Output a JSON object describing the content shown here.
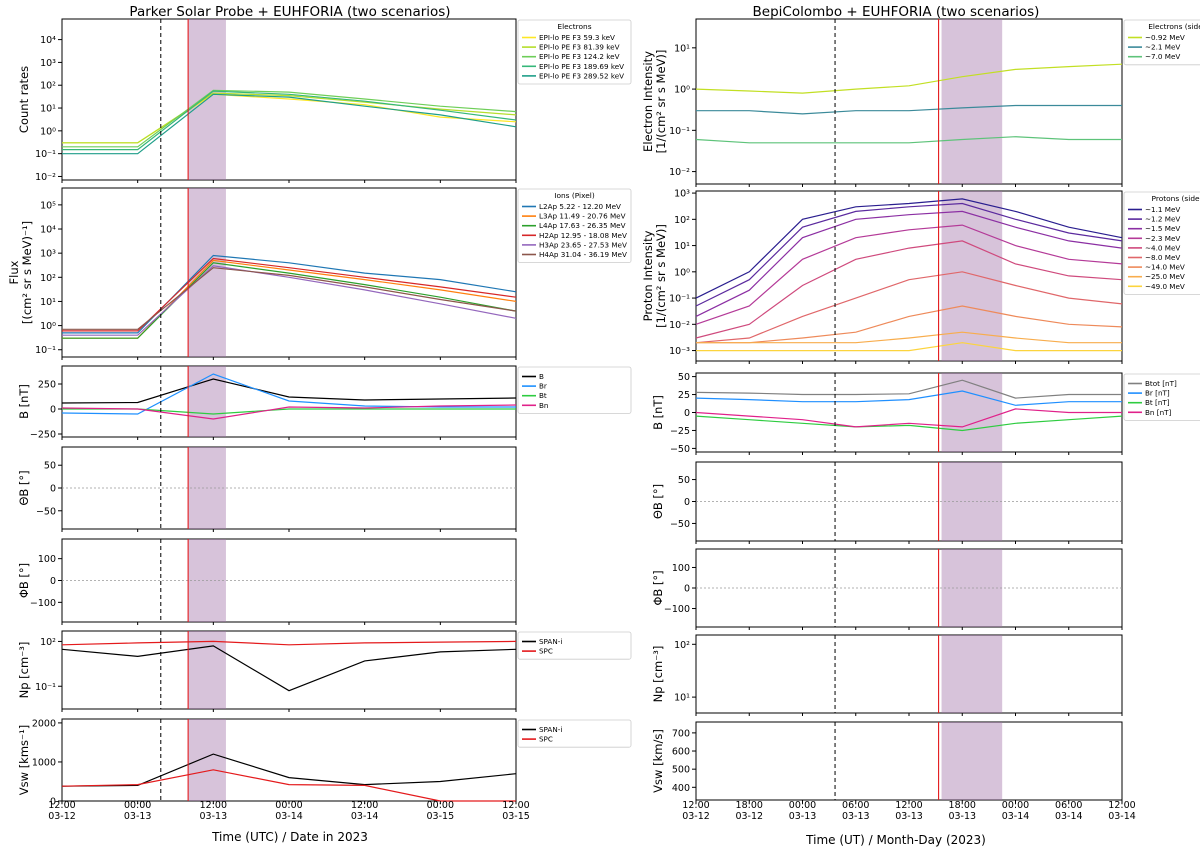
{
  "chart_data": [
    {
      "type": "line",
      "title": "Parker Solar Probe + EUHFORIA (two scenarios)",
      "xlabel": "Time (UTC) / Date in 2023",
      "x_ticks": [
        {
          "time": "12:00",
          "date": "03-12"
        },
        {
          "time": "00:00",
          "date": "03-13"
        },
        {
          "time": "12:00",
          "date": "03-13"
        },
        {
          "time": "00:00",
          "date": "03-14"
        },
        {
          "time": "12:00",
          "date": "03-14"
        },
        {
          "time": "00:00",
          "date": "03-15"
        },
        {
          "time": "12:00",
          "date": "03-15"
        }
      ],
      "xlim": [
        "2023-03-12T12:00",
        "2023-03-15T12:00"
      ],
      "markers": {
        "dashed_line": "2023-03-13T03:40",
        "red_line": "2023-03-13T08:00",
        "shaded_interval": [
          "2023-03-13T08:00",
          "2023-03-13T14:00"
        ]
      },
      "panels": [
        {
          "ylabel": "Count rates",
          "yscale": "log",
          "ylim": [
            0.007,
            80000
          ],
          "yticks": [
            "10⁻²",
            "10⁻¹",
            "10⁰",
            "10¹",
            "10²",
            "10³",
            "10⁴"
          ],
          "legend_title": "Electrons",
          "legend_position": "right",
          "series": [
            {
              "name": "EPI-lo PE F3 59.3 keV",
              "color": "#fde725",
              "values": [
                0.3,
                0.3,
                40,
                25,
                14,
                4,
                2.5
              ]
            },
            {
              "name": "EPI-lo PE F3 81.39 keV",
              "color": "#b5de2b",
              "values": [
                0.3,
                0.3,
                45,
                35,
                18,
                9,
                5
              ]
            },
            {
              "name": "EPI-lo PE F3 124.2 keV",
              "color": "#6ece58",
              "values": [
                0.2,
                0.2,
                60,
                50,
                25,
                12,
                7
              ]
            },
            {
              "name": "EPI-lo PE F3 189.69 keV",
              "color": "#35b779",
              "values": [
                0.15,
                0.15,
                55,
                40,
                20,
                8,
                3
              ]
            },
            {
              "name": "EPI-lo PE F3 289.52 keV",
              "color": "#1f9e89",
              "values": [
                0.1,
                0.1,
                40,
                30,
                12,
                5,
                1.5
              ]
            }
          ]
        },
        {
          "ylabel": "Flux",
          "ylabel2": "[(cm² sr s MeV)⁻¹]",
          "yscale": "log",
          "ylim": [
            0.05,
            500000
          ],
          "yticks": [
            "10⁻¹",
            "10⁰",
            "10¹",
            "10²",
            "10³",
            "10⁴",
            "10⁵"
          ],
          "legend_title": "Ions (Pixel)",
          "legend_position": "right",
          "series": [
            {
              "name": "L2Ap 5.22 - 12.20 MeV",
              "color": "#1f77b4",
              "values": [
                0.5,
                0.5,
                800,
                400,
                150,
                80,
                25
              ]
            },
            {
              "name": "L3Ap 11.49 - 20.76 MeV",
              "color": "#ff7f0e",
              "values": [
                0.3,
                0.3,
                500,
                200,
                80,
                30,
                10
              ]
            },
            {
              "name": "L4Ap 17.63 - 26.35 MeV",
              "color": "#2ca02c",
              "values": [
                0.3,
                0.3,
                400,
                150,
                50,
                15,
                4
              ]
            },
            {
              "name": "H2Ap 12.95 - 18.08 MeV",
              "color": "#d62728",
              "values": [
                0.6,
                0.6,
                600,
                250,
                100,
                40,
                15
              ]
            },
            {
              "name": "H3Ap 23.65 - 27.53 MeV",
              "color": "#9467bd",
              "values": [
                0.4,
                0.4,
                300,
                100,
                30,
                8,
                2
              ]
            },
            {
              "name": "H4Ap 31.04 - 36.19 MeV",
              "color": "#8c564b",
              "values": [
                0.7,
                0.7,
                250,
                120,
                40,
                12,
                4
              ]
            }
          ]
        },
        {
          "ylabel": "B [nT]",
          "ylim": [
            -280,
            430
          ],
          "yticks": [
            "−250",
            "0",
            "250"
          ],
          "legend_position": "right",
          "series": [
            {
              "name": "B",
              "color": "#000000",
              "values": [
                60,
                65,
                300,
                120,
                90,
                100,
                110
              ]
            },
            {
              "name": "Br",
              "color": "#1e90ff",
              "values": [
                -40,
                -50,
                350,
                80,
                30,
                20,
                20
              ]
            },
            {
              "name": "Bt",
              "color": "#2ecc40",
              "values": [
                0,
                0,
                -50,
                0,
                0,
                0,
                0
              ]
            },
            {
              "name": "Bn",
              "color": "#e0218a",
              "values": [
                10,
                0,
                -100,
                20,
                10,
                30,
                40
              ]
            }
          ]
        },
        {
          "ylabel": "ΘB [°]",
          "ylim": [
            -90,
            90
          ],
          "yticks": [
            "−50",
            "0",
            "50"
          ],
          "series": []
        },
        {
          "ylabel": "ΦB [°]",
          "ylim": [
            -190,
            190
          ],
          "yticks": [
            "−100",
            "0",
            "100"
          ],
          "series": []
        },
        {
          "ylabel": "Np [cm⁻³]",
          "yscale": "log",
          "ylim": [
            0.003,
            500
          ],
          "yticks": [
            "10⁻¹",
            "10²"
          ],
          "legend_position": "right",
          "series": [
            {
              "name": "SPAN-i",
              "color": "#000000",
              "values": [
                30,
                10,
                50,
                0.05,
                5,
                20,
                30
              ]
            },
            {
              "name": "SPC",
              "color": "#e41a1c",
              "values": [
                60,
                80,
                100,
                60,
                80,
                90,
                100
              ]
            }
          ]
        },
        {
          "ylabel": "Vsw [kms⁻¹]",
          "ylim": [
            0,
            2100
          ],
          "yticks": [
            "0",
            "1000",
            "2000"
          ],
          "legend_position": "right",
          "series": [
            {
              "name": "SPAN-i",
              "color": "#000000",
              "values": [
                380,
                400,
                1200,
                600,
                420,
                500,
                700
              ]
            },
            {
              "name": "SPC",
              "color": "#e41a1c",
              "values": [
                380,
                420,
                800,
                420,
                400,
                0,
                0
              ]
            }
          ]
        }
      ]
    },
    {
      "type": "line",
      "title": "BepiColombo + EUHFORIA (two scenarios)",
      "xlabel": "Time (UT) / Month-Day (2023)",
      "x_ticks": [
        {
          "time": "12:00",
          "date": "03-12"
        },
        {
          "time": "18:00",
          "date": "03-12"
        },
        {
          "time": "00:00",
          "date": "03-13"
        },
        {
          "time": "06:00",
          "date": "03-13"
        },
        {
          "time": "12:00",
          "date": "03-13"
        },
        {
          "time": "18:00",
          "date": "03-13"
        },
        {
          "time": "00:00",
          "date": "03-14"
        },
        {
          "time": "06:00",
          "date": "03-14"
        },
        {
          "time": "12:00",
          "date": "03-14"
        }
      ],
      "xlim": [
        "2023-03-12T12:00",
        "2023-03-14T12:00"
      ],
      "markers": {
        "dashed_line": "2023-03-13T03:40",
        "red_line": "2023-03-13T15:20",
        "shaded_interval": [
          "2023-03-13T15:40",
          "2023-03-13T22:30"
        ]
      },
      "panels": [
        {
          "ylabel": "Electron Intensity",
          "ylabel2": "[1/(cm² sr s MeV)]",
          "yscale": "log",
          "ylim": [
            0.005,
            50
          ],
          "yticks": [
            "10⁻²",
            "10⁻¹",
            "10⁰",
            "10¹"
          ],
          "legend_title": "Electrons (side 0)",
          "legend_position": "right",
          "series": [
            {
              "name": "~0.92 MeV",
              "color": "#c2df23",
              "values": [
                1,
                0.9,
                0.8,
                1,
                1.2,
                2,
                3,
                3.5,
                4
              ]
            },
            {
              "name": "~2.1 MeV",
              "color": "#3b8a9a",
              "values": [
                0.3,
                0.3,
                0.25,
                0.3,
                0.3,
                0.35,
                0.4,
                0.4,
                0.4
              ]
            },
            {
              "name": "~7.0 MeV",
              "color": "#5ec37a",
              "values": [
                0.06,
                0.05,
                0.05,
                0.05,
                0.05,
                0.06,
                0.07,
                0.06,
                0.06
              ]
            }
          ]
        },
        {
          "ylabel": "Proton Intensity",
          "ylabel2": "[1/(cm² sr s MeV)]",
          "yscale": "log",
          "ylim": [
            0.0004,
            1200
          ],
          "yticks": [
            "10⁻³",
            "10⁻²",
            "10⁻¹",
            "10⁰",
            "10¹",
            "10²",
            "10³"
          ],
          "legend_title": "Protons (side 0)",
          "legend_position": "right",
          "series": [
            {
              "name": "~1.1 MeV",
              "color": "#2a1e8f",
              "values": [
                0.1,
                1,
                100,
                300,
                400,
                600,
                200,
                50,
                20
              ]
            },
            {
              "name": "~1.2 MeV",
              "color": "#5b2a9e",
              "values": [
                0.05,
                0.5,
                50,
                200,
                300,
                400,
                100,
                30,
                15
              ]
            },
            {
              "name": "~1.5 MeV",
              "color": "#8b2fa3",
              "values": [
                0.02,
                0.2,
                20,
                100,
                150,
                200,
                50,
                15,
                8
              ]
            },
            {
              "name": "~2.3 MeV",
              "color": "#b43a98",
              "values": [
                0.01,
                0.05,
                3,
                20,
                40,
                60,
                10,
                3,
                2
              ]
            },
            {
              "name": "~4.0 MeV",
              "color": "#cf4a7d",
              "values": [
                0.003,
                0.01,
                0.3,
                3,
                8,
                15,
                2,
                0.7,
                0.5
              ]
            },
            {
              "name": "~8.0 MeV",
              "color": "#e0676a",
              "values": [
                0.002,
                0.003,
                0.02,
                0.1,
                0.5,
                1,
                0.3,
                0.1,
                0.06
              ]
            },
            {
              "name": "~14.0 MeV",
              "color": "#ee8a5a",
              "values": [
                0.002,
                0.002,
                0.003,
                0.005,
                0.02,
                0.05,
                0.02,
                0.01,
                0.008
              ]
            },
            {
              "name": "~25.0 MeV",
              "color": "#f8ad4d",
              "values": [
                0.002,
                0.002,
                0.002,
                0.002,
                0.003,
                0.005,
                0.003,
                0.002,
                0.002
              ]
            },
            {
              "name": "~49.0 MeV",
              "color": "#fcd43d",
              "values": [
                0.001,
                0.001,
                0.001,
                0.001,
                0.001,
                0.002,
                0.001,
                0.001,
                0.001
              ]
            }
          ]
        },
        {
          "ylabel": "B [nT]",
          "ylim": [
            -55,
            55
          ],
          "yticks": [
            "−50",
            "−25",
            "0",
            "25",
            "50"
          ],
          "legend_position": "right",
          "series": [
            {
              "name": "Btot [nT]",
              "color": "#808080",
              "values": [
                28,
                27,
                25,
                25,
                26,
                45,
                20,
                25,
                25
              ]
            },
            {
              "name": "Br [nT]",
              "color": "#1f8fff",
              "values": [
                20,
                18,
                15,
                15,
                18,
                30,
                10,
                15,
                15
              ]
            },
            {
              "name": "Bt [nT]",
              "color": "#2ecc40",
              "values": [
                -5,
                -10,
                -15,
                -20,
                -18,
                -25,
                -15,
                -10,
                -5
              ]
            },
            {
              "name": "Bn [nT]",
              "color": "#e0218a",
              "values": [
                0,
                -5,
                -10,
                -20,
                -15,
                -20,
                5,
                0,
                0
              ]
            }
          ]
        },
        {
          "ylabel": "ΘB [°]",
          "ylim": [
            -90,
            90
          ],
          "yticks": [
            "−50",
            "0",
            "50"
          ],
          "series": []
        },
        {
          "ylabel": "ΦB [°]",
          "ylim": [
            -190,
            190
          ],
          "yticks": [
            "−100",
            "0",
            "100"
          ],
          "series": []
        },
        {
          "ylabel": "Np [cm⁻³]",
          "yscale": "log",
          "ylim": [
            5,
            150
          ],
          "yticks": [
            "10¹",
            "10²"
          ],
          "series": []
        },
        {
          "ylabel": "Vsw [km/s]",
          "ylim": [
            330,
            760
          ],
          "yticks": [
            "400",
            "500",
            "600",
            "700"
          ],
          "series": []
        }
      ]
    }
  ]
}
